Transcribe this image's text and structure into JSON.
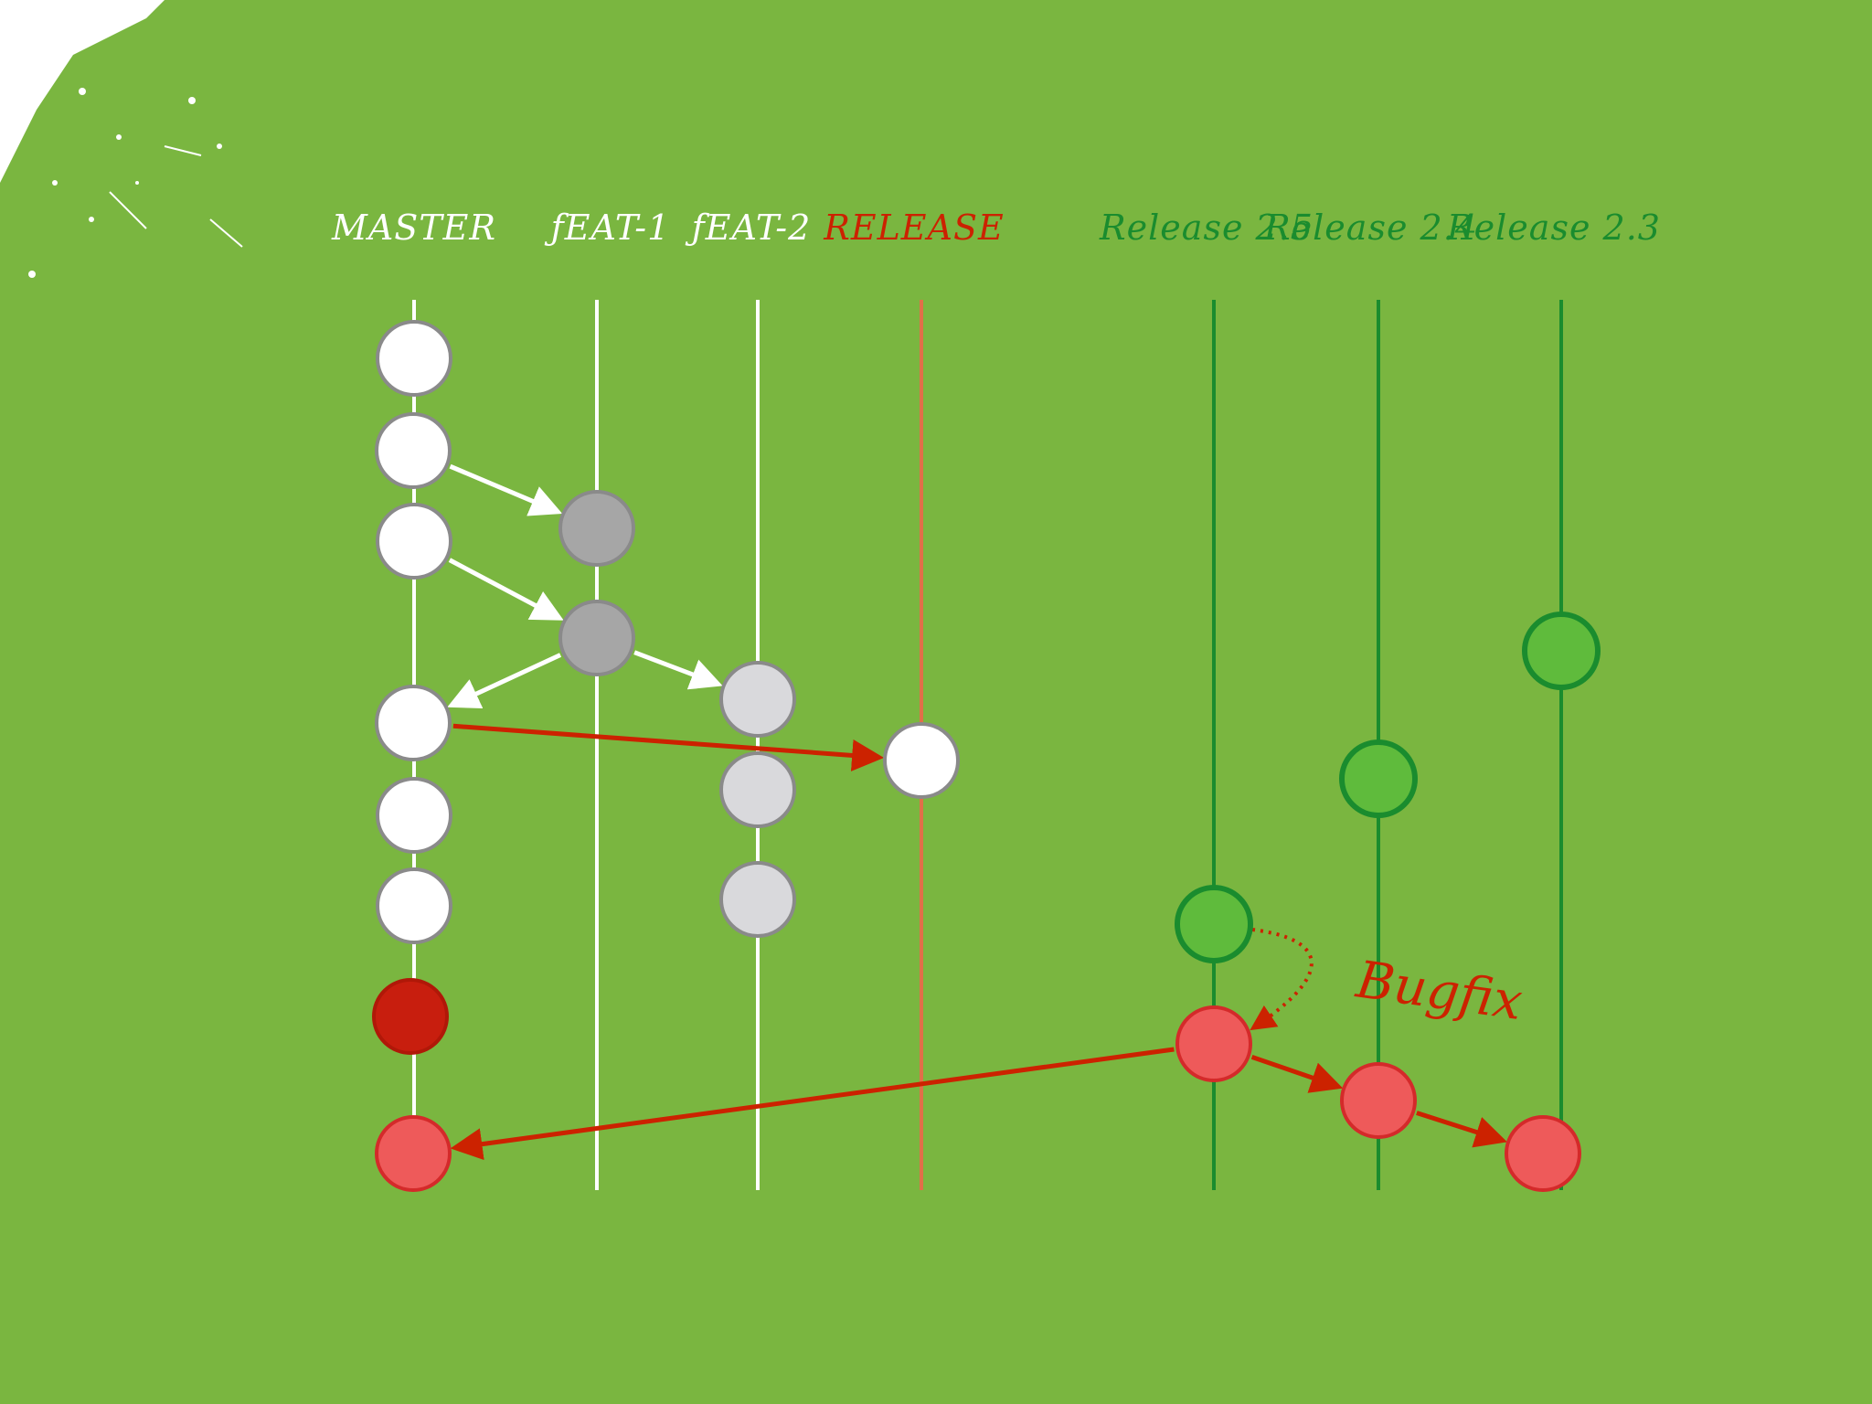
{
  "colors": {
    "background": "#7ab640",
    "white_node": "#ffffff",
    "dark_gray_node": "#a6a6a6",
    "light_gray_node": "#d9d9dc",
    "node_outline": "#8a8a8a",
    "green_node": "#5fbb3c",
    "green_line": "#1a8c2e",
    "red_node": "#ee5a5a",
    "dark_red_node": "#c81e0e",
    "red_arrow": "#cc2200",
    "release_line": "#e07048",
    "white_line": "#ffffff",
    "label_white": "#ffffff",
    "label_red": "#cc2200",
    "label_green": "#1a8c2e"
  },
  "lanes": [
    {
      "id": "master",
      "label": "MASTER",
      "label_color": "label_white",
      "line_color": "white_line"
    },
    {
      "id": "feat1",
      "label": "ƒEAT-1",
      "label_color": "label_white",
      "line_color": "white_line"
    },
    {
      "id": "feat2",
      "label": "ƒEAT-2",
      "label_color": "label_white",
      "line_color": "white_line"
    },
    {
      "id": "release",
      "label": "RELEASE",
      "label_color": "label_red",
      "line_color": "release_line"
    },
    {
      "id": "r25",
      "label": "Release 2.5",
      "label_color": "label_green",
      "line_color": "green_line"
    },
    {
      "id": "r24",
      "label": "Release 2.4",
      "label_color": "label_green",
      "line_color": "green_line"
    },
    {
      "id": "r23",
      "label": "Release 2.3",
      "label_color": "label_green",
      "line_color": "green_line"
    }
  ],
  "nodes": [
    {
      "id": "m1",
      "lane": "master",
      "fill": "white_node"
    },
    {
      "id": "m2",
      "lane": "master",
      "fill": "white_node"
    },
    {
      "id": "m3",
      "lane": "master",
      "fill": "white_node"
    },
    {
      "id": "m4",
      "lane": "master",
      "fill": "white_node"
    },
    {
      "id": "m5",
      "lane": "master",
      "fill": "white_node"
    },
    {
      "id": "m6",
      "lane": "master",
      "fill": "white_node"
    },
    {
      "id": "m7",
      "lane": "master",
      "fill": "dark_red_node"
    },
    {
      "id": "m8",
      "lane": "master",
      "fill": "red_node"
    },
    {
      "id": "f1a",
      "lane": "feat1",
      "fill": "dark_gray_node"
    },
    {
      "id": "f1b",
      "lane": "feat1",
      "fill": "dark_gray_node"
    },
    {
      "id": "f2a",
      "lane": "feat2",
      "fill": "light_gray_node"
    },
    {
      "id": "f2b",
      "lane": "feat2",
      "fill": "light_gray_node"
    },
    {
      "id": "f2c",
      "lane": "feat2",
      "fill": "light_gray_node"
    },
    {
      "id": "rel1",
      "lane": "release",
      "fill": "white_node"
    },
    {
      "id": "r25a",
      "lane": "r25",
      "fill": "green_node"
    },
    {
      "id": "r25b",
      "lane": "r25",
      "fill": "red_node"
    },
    {
      "id": "r24a",
      "lane": "r24",
      "fill": "green_node"
    },
    {
      "id": "r24b",
      "lane": "r24",
      "fill": "red_node"
    },
    {
      "id": "r23a",
      "lane": "r23",
      "fill": "green_node"
    },
    {
      "id": "r23b",
      "lane": "r23",
      "fill": "red_node"
    }
  ],
  "edges": [
    {
      "from": "m2",
      "to": "f1a",
      "style": "white"
    },
    {
      "from": "m3",
      "to": "f1b",
      "style": "white"
    },
    {
      "from": "f1b",
      "to": "f2a",
      "style": "white"
    },
    {
      "from": "f1b",
      "to": "m4",
      "style": "white"
    },
    {
      "from": "m4",
      "to": "rel1",
      "style": "red"
    },
    {
      "from": "r25a",
      "to": "r25b",
      "style": "red-dotted"
    },
    {
      "from": "r25b",
      "to": "r24b",
      "style": "red"
    },
    {
      "from": "r24b",
      "to": "r23b",
      "style": "red"
    },
    {
      "from": "r25b",
      "to": "m8",
      "style": "red"
    }
  ],
  "annotation": {
    "label": "Bugfix",
    "color": "label_red"
  }
}
